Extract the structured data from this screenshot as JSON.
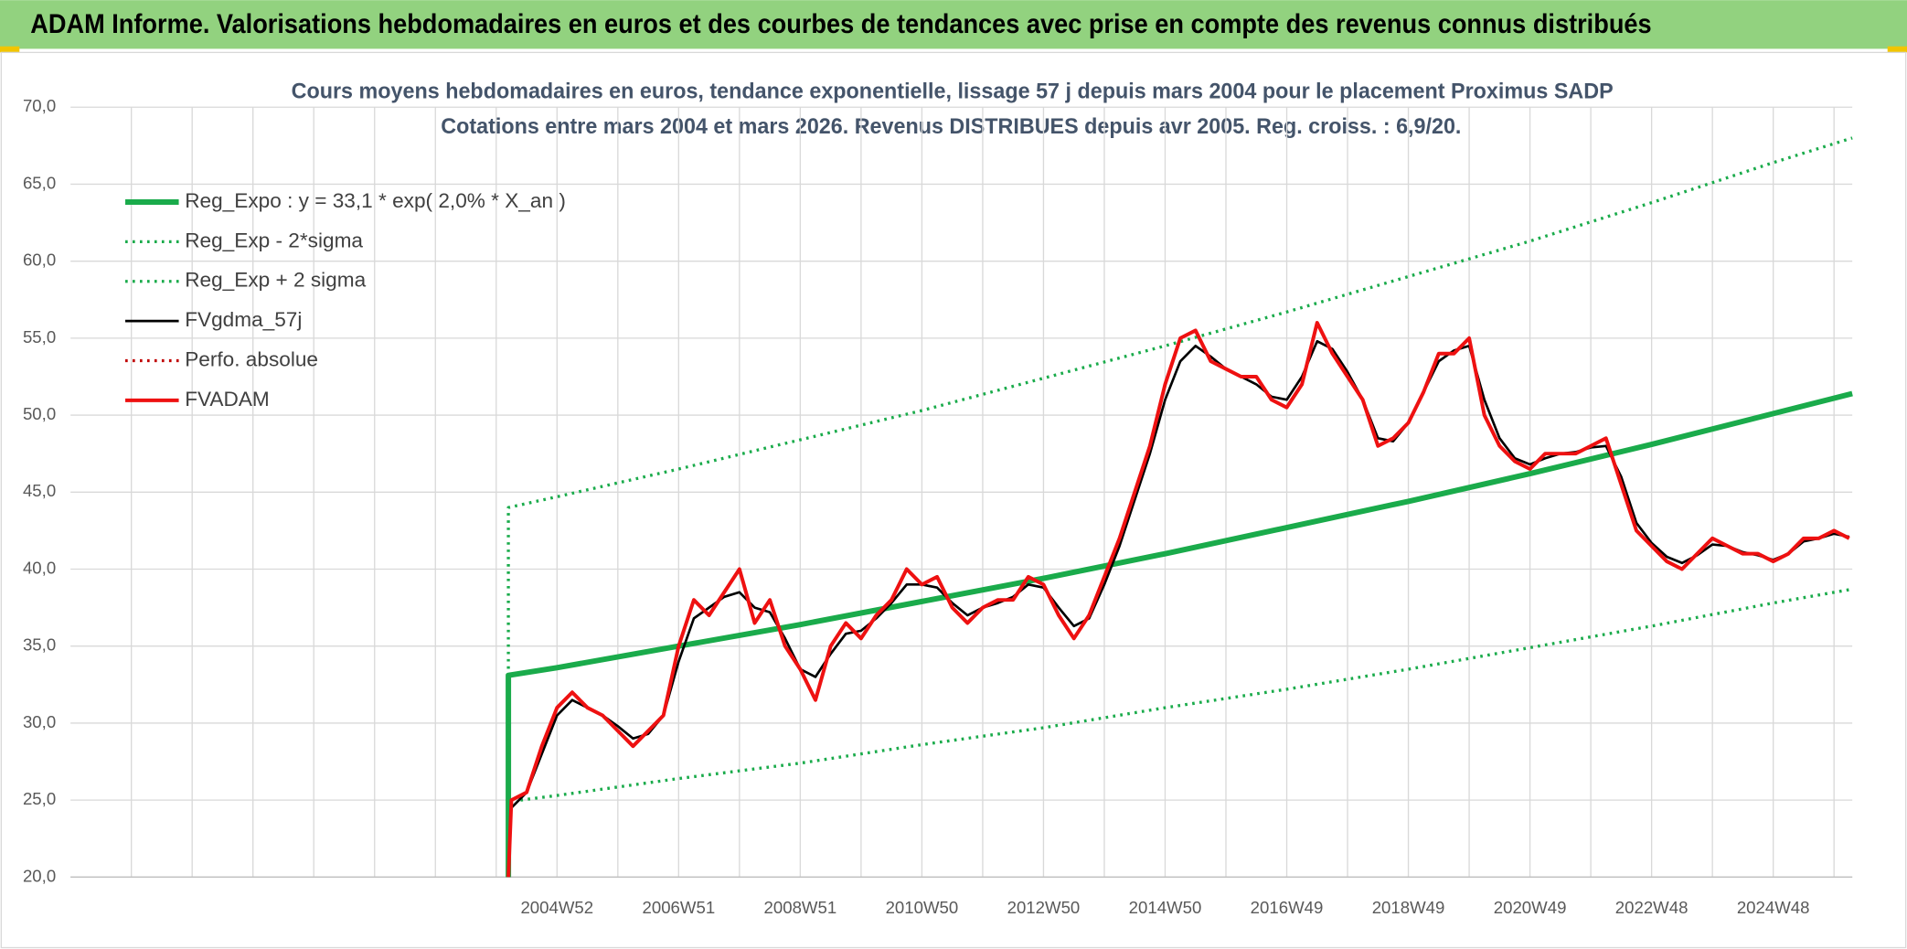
{
  "header": {
    "title": "ADAM Informe. Valorisations hebdomadaires en euros et des courbes de tendances avec prise en compte des revenus connus distribués"
  },
  "chart_data": {
    "type": "line",
    "title": "Cours moyens hebdomadaires en euros, tendance exponentielle, lissage 57 j depuis mars 2004 pour le placement Proximus SADP",
    "subtitle": "Cotations entre mars 2004 et mars 2026. Revenus DISTRIBUES depuis avr 2005. Reg. croiss. : 6,9/20.",
    "xlim": [
      1997,
      2026.3
    ],
    "xticks": [
      {
        "value": 1998,
        "label": null
      },
      {
        "value": 1999,
        "label": null
      },
      {
        "value": 2000,
        "label": null
      },
      {
        "value": 2001,
        "label": null
      },
      {
        "value": 2002,
        "label": null
      },
      {
        "value": 2003,
        "label": null
      },
      {
        "value": 2004,
        "label": null
      },
      {
        "value": 2005,
        "label": "2004W52"
      },
      {
        "value": 2006,
        "label": null
      },
      {
        "value": 2007,
        "label": "2006W51"
      },
      {
        "value": 2008,
        "label": null
      },
      {
        "value": 2009,
        "label": "2008W51"
      },
      {
        "value": 2010,
        "label": null
      },
      {
        "value": 2011,
        "label": "2010W50"
      },
      {
        "value": 2012,
        "label": null
      },
      {
        "value": 2013,
        "label": "2012W50"
      },
      {
        "value": 2014,
        "label": null
      },
      {
        "value": 2015,
        "label": "2014W50"
      },
      {
        "value": 2016,
        "label": null
      },
      {
        "value": 2017,
        "label": "2016W49"
      },
      {
        "value": 2018,
        "label": null
      },
      {
        "value": 2019,
        "label": "2018W49"
      },
      {
        "value": 2020,
        "label": null
      },
      {
        "value": 2021,
        "label": "2020W49"
      },
      {
        "value": 2022,
        "label": null
      },
      {
        "value": 2023,
        "label": "2022W48"
      },
      {
        "value": 2024,
        "label": null
      },
      {
        "value": 2025,
        "label": "2024W48"
      },
      {
        "value": 2026,
        "label": null
      }
    ],
    "ylim": [
      20,
      70
    ],
    "yticks": [
      {
        "value": 20,
        "label": "20,0"
      },
      {
        "value": 25,
        "label": "25,0"
      },
      {
        "value": 30,
        "label": "30,0"
      },
      {
        "value": 35,
        "label": "35,0"
      },
      {
        "value": 40,
        "label": "40,0"
      },
      {
        "value": 45,
        "label": "45,0"
      },
      {
        "value": 50,
        "label": "50,0"
      },
      {
        "value": 55,
        "label": "55,0"
      },
      {
        "value": 60,
        "label": "60,0"
      },
      {
        "value": 65,
        "label": "65,0"
      },
      {
        "value": 70,
        "label": "70,0"
      }
    ],
    "grid": true,
    "legend": "upper left",
    "series": [
      {
        "name": "Reg_Expo : y = 33,1 * exp( 2,0% *  X_an )",
        "color": "#1aab4b",
        "style": "thick",
        "x": [
          2004.2,
          2004.2,
          2005,
          2007,
          2009,
          2011,
          2013,
          2015,
          2017,
          2019,
          2021,
          2023,
          2025,
          2026.3
        ],
        "values": [
          20,
          33.1,
          33.6,
          35.0,
          36.4,
          37.9,
          39.4,
          41.0,
          42.7,
          44.4,
          46.2,
          48.1,
          50.1,
          51.4
        ]
      },
      {
        "name": "Reg_Exp - 2*sigma",
        "color": "#1aab4b",
        "style": "dotted",
        "x": [
          2004.4,
          2005,
          2007,
          2009,
          2011,
          2013,
          2015,
          2017,
          2019,
          2021,
          2023,
          2025,
          2026.3
        ],
        "values": [
          25,
          25.3,
          26.4,
          27.4,
          28.6,
          29.7,
          31.0,
          32.2,
          33.5,
          34.9,
          36.3,
          37.8,
          38.7
        ]
      },
      {
        "name": "Reg_Exp + 2 sigma",
        "color": "#1aab4b",
        "style": "dotted",
        "x": [
          2004.2,
          2004.2,
          2005,
          2007,
          2009,
          2011,
          2013,
          2015,
          2017,
          2019,
          2021,
          2023,
          2025,
          2026.3
        ],
        "values": [
          25,
          44,
          44.7,
          46.5,
          48.4,
          50.3,
          52.4,
          54.5,
          56.7,
          59.0,
          61.3,
          63.8,
          66.4,
          68
        ]
      },
      {
        "name": "FVgdma_57j",
        "color": "#000000",
        "style": "solid",
        "x": [
          2004.25,
          2004.5,
          2004.75,
          2005,
          2005.25,
          2005.5,
          2005.75,
          2006,
          2006.25,
          2006.5,
          2006.75,
          2007,
          2007.25,
          2007.5,
          2007.75,
          2008,
          2008.25,
          2008.5,
          2008.75,
          2009,
          2009.25,
          2009.5,
          2009.75,
          2010,
          2010.25,
          2010.5,
          2010.75,
          2011,
          2011.25,
          2011.5,
          2011.75,
          2012,
          2012.25,
          2012.5,
          2012.75,
          2013,
          2013.25,
          2013.5,
          2013.75,
          2014,
          2014.25,
          2014.5,
          2014.75,
          2015,
          2015.25,
          2015.5,
          2015.75,
          2016,
          2016.25,
          2016.5,
          2016.75,
          2017,
          2017.25,
          2017.5,
          2017.75,
          2018,
          2018.25,
          2018.5,
          2018.75,
          2019,
          2019.25,
          2019.5,
          2019.75,
          2020,
          2020.25,
          2020.5,
          2020.75,
          2021,
          2021.25,
          2021.5,
          2021.75,
          2022,
          2022.25,
          2022.5,
          2022.75,
          2023,
          2023.25,
          2023.5,
          2023.75,
          2024,
          2024.25,
          2024.5,
          2024.75,
          2025,
          2025.25,
          2025.5,
          2025.75,
          2026,
          2026.25
        ],
        "values": [
          24.5,
          25.5,
          28,
          30.5,
          31.5,
          31,
          30.5,
          29.8,
          29,
          29.3,
          30.5,
          34,
          36.8,
          37.5,
          38.2,
          38.5,
          37.5,
          37.2,
          35.5,
          33.5,
          33,
          34.5,
          35.8,
          36,
          36.8,
          37.8,
          39,
          39,
          38.8,
          37.8,
          37,
          37.5,
          37.8,
          38.2,
          39,
          38.8,
          37.5,
          36.3,
          36.8,
          39,
          41.5,
          44.5,
          47.5,
          51,
          53.5,
          54.5,
          53.8,
          53,
          52.5,
          52,
          51.2,
          51,
          52.5,
          54.8,
          54.3,
          52.8,
          51,
          48.5,
          48.3,
          49.5,
          51.5,
          53.5,
          54.2,
          54.5,
          51,
          48.5,
          47.2,
          46.8,
          47.2,
          47.5,
          47.6,
          47.9,
          48,
          46,
          43,
          41.7,
          40.8,
          40.4,
          40.9,
          41.6,
          41.5,
          41.1,
          40.9,
          40.6,
          41,
          41.8,
          42,
          42.3,
          42.1
        ]
      },
      {
        "name": "Perfo. absolue",
        "color": "#c00000",
        "style": "dotted",
        "x": [],
        "values": []
      },
      {
        "name": "FVADAM",
        "color": "#ee1111",
        "style": "main",
        "x": [
          2004.2,
          2004.25,
          2004.5,
          2004.75,
          2005,
          2005.25,
          2005.5,
          2005.75,
          2006,
          2006.25,
          2006.5,
          2006.75,
          2007,
          2007.25,
          2007.5,
          2007.75,
          2008,
          2008.25,
          2008.5,
          2008.75,
          2009,
          2009.25,
          2009.5,
          2009.75,
          2010,
          2010.25,
          2010.5,
          2010.75,
          2011,
          2011.25,
          2011.5,
          2011.75,
          2012,
          2012.25,
          2012.5,
          2012.75,
          2013,
          2013.25,
          2013.5,
          2013.75,
          2014,
          2014.25,
          2014.5,
          2014.75,
          2015,
          2015.25,
          2015.5,
          2015.75,
          2016,
          2016.25,
          2016.5,
          2016.75,
          2017,
          2017.25,
          2017.5,
          2017.75,
          2018,
          2018.25,
          2018.5,
          2018.75,
          2019,
          2019.25,
          2019.5,
          2019.75,
          2020,
          2020.25,
          2020.5,
          2020.75,
          2021,
          2021.25,
          2021.5,
          2021.75,
          2022,
          2022.25,
          2022.5,
          2022.75,
          2023,
          2023.25,
          2023.5,
          2023.75,
          2024,
          2024.25,
          2024.5,
          2024.75,
          2025,
          2025.25,
          2025.5,
          2025.75,
          2026,
          2026.25
        ],
        "values": [
          20,
          25,
          25.5,
          28.5,
          31,
          32,
          31,
          30.5,
          29.5,
          28.5,
          29.5,
          30.5,
          35,
          38,
          37,
          38.5,
          40,
          36.5,
          38,
          35,
          33.5,
          31.5,
          35,
          36.5,
          35.5,
          37,
          38,
          40,
          39,
          39.5,
          37.5,
          36.5,
          37.5,
          38,
          38,
          39.5,
          39,
          37,
          35.5,
          37,
          39.5,
          42,
          45,
          48,
          52,
          55,
          55.5,
          53.5,
          53,
          52.5,
          52.5,
          51,
          50.5,
          52,
          56,
          54,
          52.5,
          51,
          48,
          48.5,
          49.5,
          51.5,
          54,
          54,
          55,
          50,
          48,
          47,
          46.5,
          47.5,
          47.5,
          47.5,
          48,
          48.5,
          45.5,
          42.5,
          41.5,
          40.5,
          40,
          41,
          42,
          41.5,
          41,
          41,
          40.5,
          41,
          42,
          42,
          42.5,
          42
        ]
      }
    ]
  }
}
